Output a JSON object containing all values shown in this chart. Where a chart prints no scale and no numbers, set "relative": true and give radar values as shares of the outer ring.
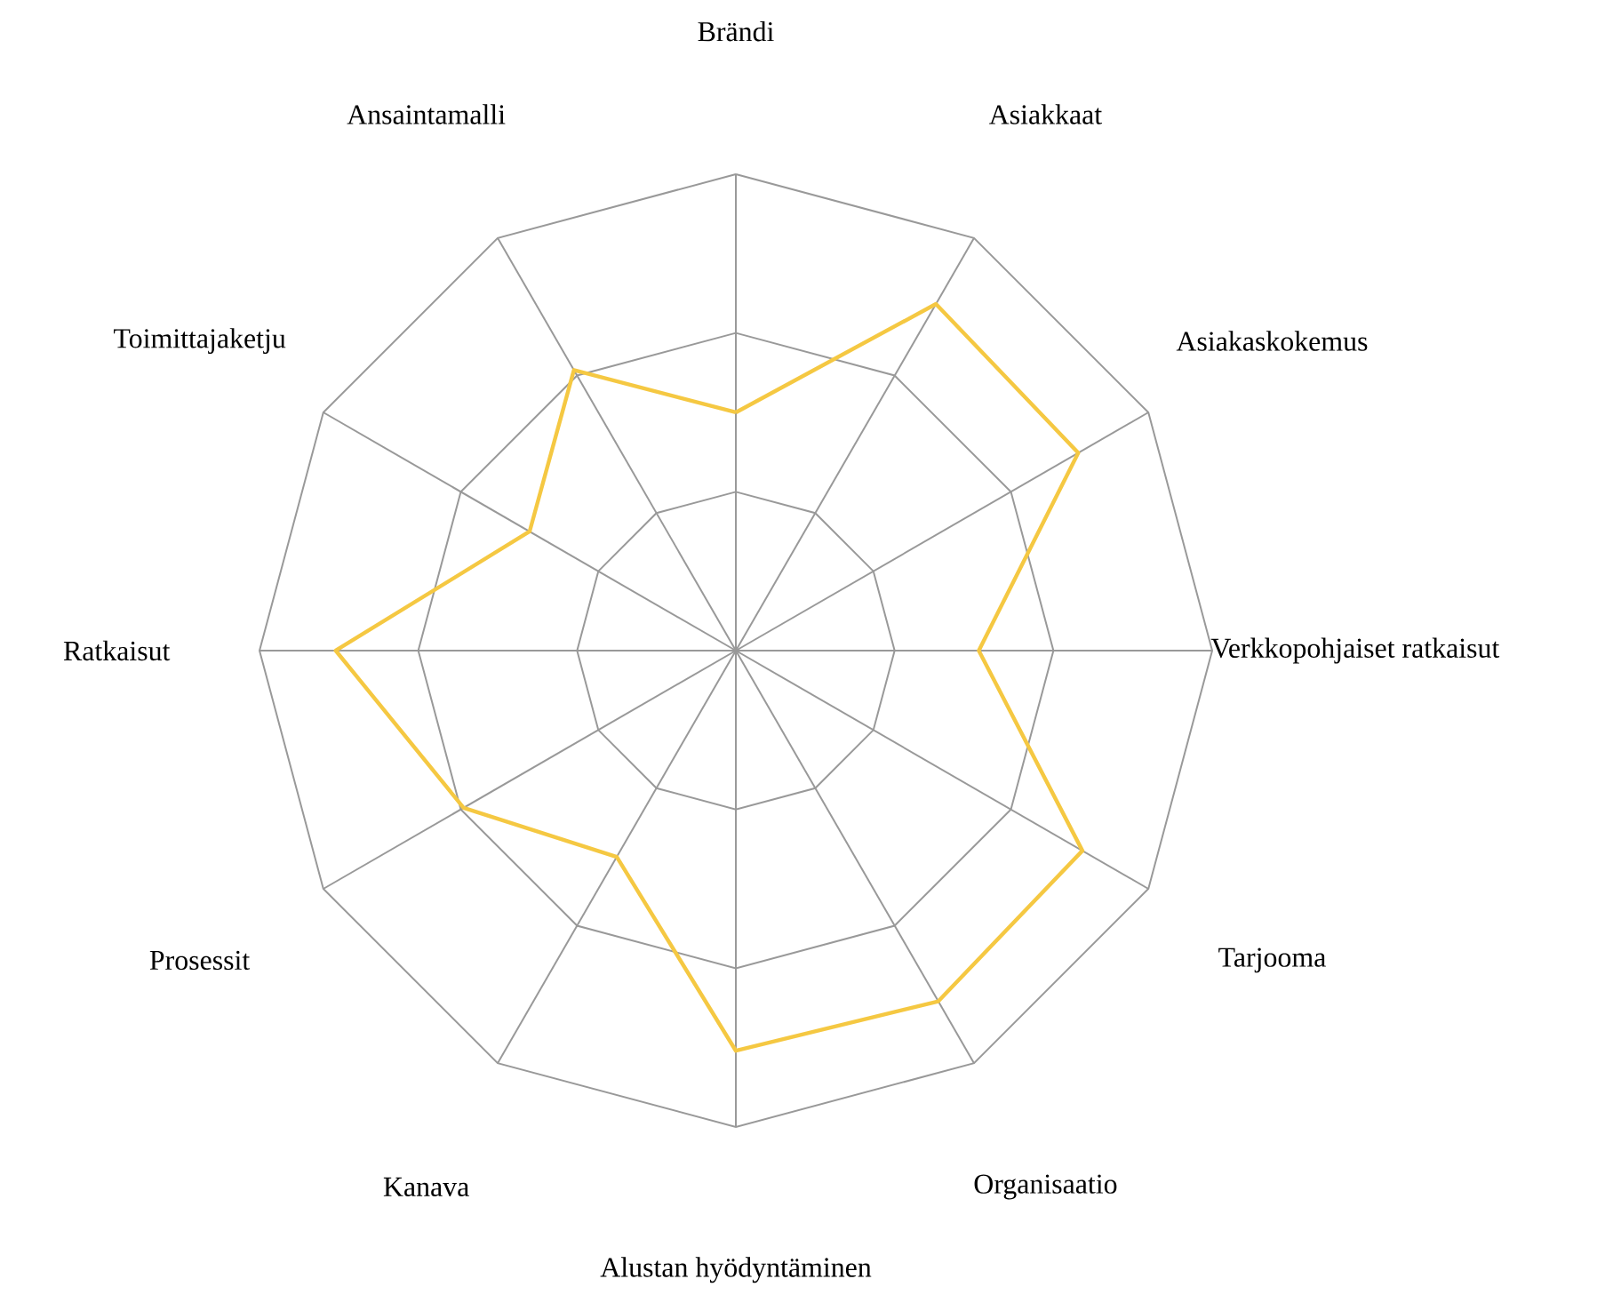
{
  "chart_data": {
    "type": "radar",
    "relative": true,
    "grid": true,
    "categories": [
      "Brändi",
      "Asiakkaat",
      "Asiakaskokemus",
      "Verkkopohjaiset ratkaisut",
      "Tarjooma",
      "Organisaatio",
      "Alustan hyödyntäminen",
      "Kanava",
      "Prosessit",
      "Ratkaisut",
      "Toimittajaketju",
      "Ansaintamalli"
    ],
    "series": [
      {
        "color": "#f5c842",
        "values": [
          0.5,
          0.84,
          0.83,
          0.51,
          0.84,
          0.85,
          0.84,
          0.5,
          0.66,
          0.84,
          0.5,
          0.68
        ]
      }
    ]
  }
}
